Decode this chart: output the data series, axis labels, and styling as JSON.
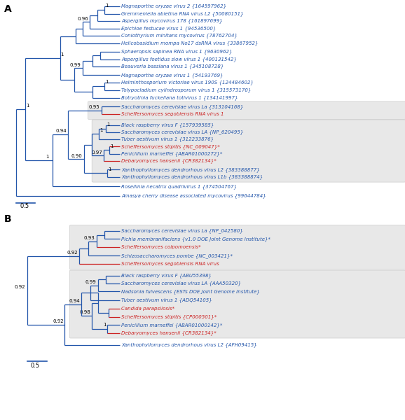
{
  "figsize": [
    5.78,
    6.0
  ],
  "dpi": 100,
  "blue": "#2255aa",
  "red": "#cc2222",
  "lw": 0.9,
  "fs_label": 5.0,
  "fs_bootstrap": 5.0,
  "panel_A": {
    "leaves": [
      {
        "name": "Magnaporthe oryzae virus 2 {164597962}",
        "color": "blue",
        "star": false
      },
      {
        "name": "Gremmeniella abietina RNA virus L2 {50080151}",
        "color": "blue",
        "star": false
      },
      {
        "name": "Aspergillus mycovirus 178 {161897699}",
        "color": "blue",
        "star": false
      },
      {
        "name": "Epichloe festucae virus 1 {94536500}",
        "color": "blue",
        "star": false
      },
      {
        "name": "Coniothyrium minitans mycovirus {78762704}",
        "color": "blue",
        "star": false
      },
      {
        "name": "Helicobasidium mompa No17 dsRNA virus {33867952}",
        "color": "blue",
        "star": false
      },
      {
        "name": "Sphaeropsis sapinea RNA virus 1 {9630962}",
        "color": "blue",
        "star": false
      },
      {
        "name": "Aspergillus foetidus slow virus 1 {400131542}",
        "color": "blue",
        "star": false
      },
      {
        "name": "Beauveria bassiana virus 1 {345108728}",
        "color": "blue",
        "star": false
      },
      {
        "name": "Magnaporthe oryzae virus 1 {54193769}",
        "color": "blue",
        "star": false
      },
      {
        "name": "Helminthosporium victoriae virus 190S {124484602}",
        "color": "blue",
        "star": false
      },
      {
        "name": "Tolypocladium cylindrosporum virus 1 {315573170}",
        "color": "blue",
        "star": false
      },
      {
        "name": "Botryotinia fuckeliana totivirus 1 {134141997}",
        "color": "blue",
        "star": false
      },
      {
        "name": "Saccharomyces cerevisiae virus La {313104168}",
        "color": "blue",
        "star": false
      },
      {
        "name": "Scheffersomyces segobiensis RNA virus 1",
        "color": "red",
        "star": false
      },
      {
        "name": "Black raspberry virus F {157939585}",
        "color": "blue",
        "star": false
      },
      {
        "name": "Saccharomyces cerevisiae virus LA {NP_620495}",
        "color": "blue",
        "star": false
      },
      {
        "name": "Tuber aestivum virus 1 {312233876}",
        "color": "blue",
        "star": false
      },
      {
        "name": "Scheffersomyces stipitis {NC_009047}",
        "color": "red",
        "star": true
      },
      {
        "name": "Penicillium marneffei {ABAR01000272}",
        "color": "blue",
        "star": true
      },
      {
        "name": "Debaryomyces hansenii {CR382134}",
        "color": "red",
        "star": true
      },
      {
        "name": "Xanthophyllomyces dendrorhous virus L2 {383388877}",
        "color": "blue",
        "star": false
      },
      {
        "name": "Xanthophyllomyces dendrorhous virus L1b {383388874}",
        "color": "blue",
        "star": false
      },
      {
        "name": "Rosellinia necatrix quadrivirus 1 {374504767}",
        "color": "blue",
        "star": false
      },
      {
        "name": "Amasya cherry disease associated mycovirus {99644784}",
        "color": "blue",
        "star": false
      }
    ]
  },
  "panel_B": {
    "leaves": [
      {
        "name": "Saccharomyces cerevisiae virus La {NP_042580}",
        "color": "blue",
        "star": false
      },
      {
        "name": "Pichia membranifaciens {v1.0 DOE Joint Genome Institute}",
        "color": "blue",
        "star": true
      },
      {
        "name": "Scheffersomyces coipomoensis",
        "color": "red",
        "star": true
      },
      {
        "name": "Schizosaccharomyces pombe {NC_003421}",
        "color": "blue",
        "star": true
      },
      {
        "name": "Scheffersomyces segobiensis RNA virus",
        "color": "red",
        "star": false
      },
      {
        "name": "Black raspberry virus F {ABU55398}",
        "color": "blue",
        "star": false
      },
      {
        "name": "Saccharomyces cerevisiae virus LA {AAA50320}",
        "color": "blue",
        "star": false
      },
      {
        "name": "Nadsonia fulvescens {ESTs DOE Joint Genome Institute}",
        "color": "blue",
        "star": false
      },
      {
        "name": "Tuber aestivum virus 1 {ADQ54105}",
        "color": "blue",
        "star": false
      },
      {
        "name": "Candida parapsilosis",
        "color": "red",
        "star": true
      },
      {
        "name": "Scheffersomyces stipitis {CP000501}",
        "color": "red",
        "star": true
      },
      {
        "name": "Penicillium marneffei {ABAR01000142}",
        "color": "blue",
        "star": true
      },
      {
        "name": "Debaryomyces hansenii {CR382134}",
        "color": "red",
        "star": true
      },
      {
        "name": "Xanthophyllomyces dendrorhous virus L2 {AFH09415}",
        "color": "blue",
        "star": false
      }
    ]
  }
}
